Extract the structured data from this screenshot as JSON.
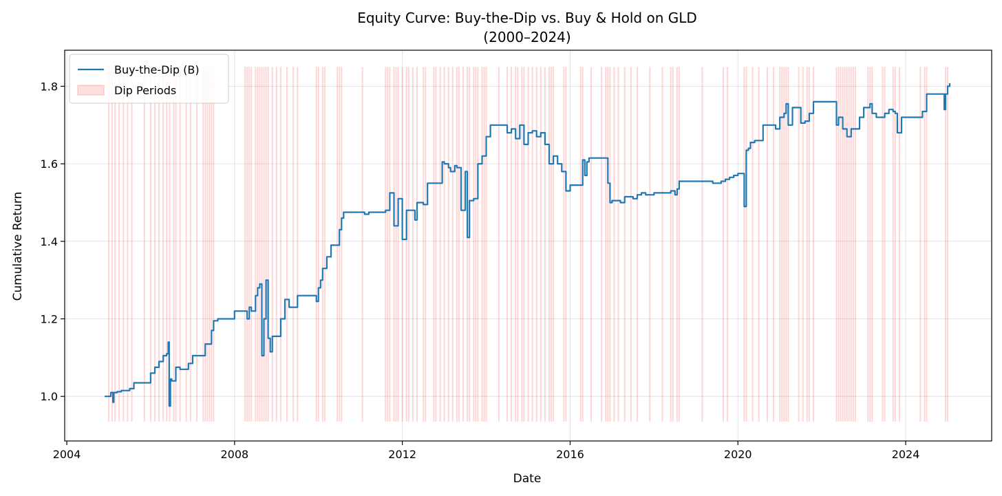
{
  "chart_data": {
    "type": "line",
    "title": "Equity Curve: Buy-the-Dip vs. Buy & Hold on GLD",
    "subtitle": "(2000–2024)",
    "xlabel": "Date",
    "ylabel": "Cumulative Return",
    "xlim": [
      2003.95,
      2026.05
    ],
    "ylim": [
      0.885,
      1.893
    ],
    "x_ticks": [
      2004,
      2008,
      2012,
      2016,
      2020,
      2024
    ],
    "x_tick_labels": [
      "2004",
      "2008",
      "2012",
      "2016",
      "2020",
      "2024"
    ],
    "y_ticks": [
      1.0,
      1.2,
      1.4,
      1.6,
      1.8
    ],
    "y_tick_labels": [
      "1.0",
      "1.2",
      "1.4",
      "1.6",
      "1.8"
    ],
    "grid": true,
    "legend_position": "upper-left",
    "colors": {
      "line": "#1f77b4",
      "dip": "#ff0000"
    },
    "series": [
      {
        "name": "Buy-the-Dip (B)",
        "x": [
          2004.9,
          2005.0,
          2005.05,
          2005.1,
          2005.12,
          2005.2,
          2005.3,
          2005.5,
          2005.6,
          2006.0,
          2006.1,
          2006.2,
          2006.3,
          2006.38,
          2006.42,
          2006.44,
          2006.47,
          2006.5,
          2006.6,
          2006.7,
          2006.9,
          2007.0,
          2007.3,
          2007.45,
          2007.5,
          2007.6,
          2008.0,
          2008.25,
          2008.3,
          2008.35,
          2008.4,
          2008.5,
          2008.55,
          2008.6,
          2008.65,
          2008.7,
          2008.75,
          2008.8,
          2008.85,
          2008.9,
          2009.0,
          2009.1,
          2009.2,
          2009.3,
          2009.5,
          2009.8,
          2009.95,
          2010.0,
          2010.05,
          2010.1,
          2010.2,
          2010.3,
          2010.5,
          2010.55,
          2010.6,
          2011.0,
          2011.1,
          2011.2,
          2011.5,
          2011.6,
          2011.7,
          2011.8,
          2011.9,
          2012.0,
          2012.1,
          2012.3,
          2012.35,
          2012.4,
          2012.5,
          2012.6,
          2012.9,
          2012.95,
          2013.0,
          2013.1,
          2013.15,
          2013.25,
          2013.3,
          2013.4,
          2013.5,
          2013.55,
          2013.6,
          2013.7,
          2013.8,
          2013.9,
          2014.0,
          2014.1,
          2014.3,
          2014.5,
          2014.6,
          2014.7,
          2014.8,
          2014.9,
          2015.0,
          2015.1,
          2015.2,
          2015.3,
          2015.4,
          2015.5,
          2015.6,
          2015.7,
          2015.8,
          2015.9,
          2016.0,
          2016.2,
          2016.3,
          2016.35,
          2016.4,
          2016.45,
          2016.8,
          2016.9,
          2016.95,
          2017.0,
          2017.2,
          2017.3,
          2017.5,
          2017.6,
          2017.7,
          2017.8,
          2018.0,
          2018.3,
          2018.4,
          2018.5,
          2018.55,
          2018.6,
          2018.7,
          2018.8,
          2019.0,
          2019.2,
          2019.4,
          2019.6,
          2019.7,
          2019.8,
          2019.9,
          2020.0,
          2020.1,
          2020.15,
          2020.2,
          2020.25,
          2020.3,
          2020.4,
          2020.6,
          2020.8,
          2020.9,
          2021.0,
          2021.1,
          2021.15,
          2021.2,
          2021.3,
          2021.4,
          2021.5,
          2021.6,
          2021.7,
          2021.8,
          2022.0,
          2022.2,
          2022.3,
          2022.35,
          2022.4,
          2022.5,
          2022.6,
          2022.7,
          2022.8,
          2022.9,
          2023.0,
          2023.1,
          2023.15,
          2023.2,
          2023.3,
          2023.5,
          2023.6,
          2023.7,
          2023.75,
          2023.8,
          2023.9,
          2024.0,
          2024.2,
          2024.4,
          2024.5,
          2024.9,
          2024.92,
          2024.95,
          2025.0,
          2025.05
        ],
        "y": [
          1.0,
          1.0,
          1.01,
          0.985,
          1.01,
          1.012,
          1.015,
          1.02,
          1.035,
          1.06,
          1.075,
          1.09,
          1.105,
          1.11,
          1.14,
          0.975,
          1.045,
          1.04,
          1.075,
          1.07,
          1.085,
          1.105,
          1.135,
          1.17,
          1.195,
          1.2,
          1.22,
          1.22,
          1.2,
          1.23,
          1.22,
          1.26,
          1.28,
          1.29,
          1.105,
          1.2,
          1.3,
          1.15,
          1.115,
          1.155,
          1.155,
          1.2,
          1.25,
          1.23,
          1.26,
          1.26,
          1.245,
          1.28,
          1.3,
          1.33,
          1.36,
          1.39,
          1.43,
          1.46,
          1.475,
          1.475,
          1.47,
          1.475,
          1.475,
          1.48,
          1.525,
          1.44,
          1.51,
          1.405,
          1.48,
          1.455,
          1.5,
          1.5,
          1.495,
          1.55,
          1.55,
          1.605,
          1.6,
          1.59,
          1.58,
          1.595,
          1.59,
          1.48,
          1.58,
          1.41,
          1.505,
          1.51,
          1.6,
          1.62,
          1.67,
          1.7,
          1.7,
          1.68,
          1.69,
          1.665,
          1.7,
          1.65,
          1.68,
          1.685,
          1.67,
          1.68,
          1.65,
          1.6,
          1.62,
          1.6,
          1.58,
          1.53,
          1.545,
          1.545,
          1.61,
          1.57,
          1.605,
          1.615,
          1.615,
          1.55,
          1.5,
          1.505,
          1.5,
          1.515,
          1.51,
          1.52,
          1.525,
          1.52,
          1.525,
          1.525,
          1.53,
          1.52,
          1.535,
          1.555,
          1.555,
          1.555,
          1.555,
          1.555,
          1.55,
          1.555,
          1.56,
          1.565,
          1.57,
          1.575,
          1.575,
          1.49,
          1.635,
          1.64,
          1.655,
          1.66,
          1.7,
          1.7,
          1.69,
          1.72,
          1.73,
          1.755,
          1.7,
          1.745,
          1.745,
          1.705,
          1.71,
          1.73,
          1.76,
          1.76,
          1.76,
          1.76,
          1.7,
          1.72,
          1.69,
          1.67,
          1.69,
          1.69,
          1.72,
          1.745,
          1.745,
          1.755,
          1.73,
          1.72,
          1.73,
          1.74,
          1.735,
          1.73,
          1.68,
          1.72,
          1.72,
          1.72,
          1.735,
          1.78,
          1.78,
          1.74,
          1.78,
          1.8,
          1.808
        ]
      }
    ],
    "dip_periods": {
      "name": "Dip Periods",
      "y_range": [
        0.935,
        1.85
      ],
      "x": [
        2005.0,
        2005.08,
        2005.15,
        2005.25,
        2005.35,
        2005.45,
        2005.55,
        2005.85,
        2006.0,
        2006.1,
        2006.2,
        2006.3,
        2006.38,
        2006.45,
        2006.55,
        2006.6,
        2006.7,
        2006.85,
        2006.95,
        2007.1,
        2007.25,
        2007.3,
        2007.35,
        2007.4,
        2007.45,
        2007.5,
        2008.25,
        2008.3,
        2008.35,
        2008.4,
        2008.5,
        2008.55,
        2008.6,
        2008.65,
        2008.7,
        2008.75,
        2008.8,
        2008.9,
        2009.0,
        2009.1,
        2009.25,
        2009.4,
        2009.5,
        2009.95,
        2010.0,
        2010.1,
        2010.15,
        2010.45,
        2010.5,
        2010.55,
        2011.05,
        2011.6,
        2011.65,
        2011.7,
        2011.8,
        2011.85,
        2011.9,
        2012.0,
        2012.1,
        2012.15,
        2012.25,
        2012.35,
        2012.5,
        2012.55,
        2012.75,
        2012.8,
        2012.9,
        2013.0,
        2013.1,
        2013.2,
        2013.3,
        2013.35,
        2013.45,
        2013.55,
        2013.6,
        2013.7,
        2013.75,
        2013.8,
        2013.9,
        2013.95,
        2014.0,
        2014.3,
        2014.5,
        2014.6,
        2014.7,
        2014.75,
        2014.85,
        2014.9,
        2015.0,
        2015.1,
        2015.2,
        2015.3,
        2015.4,
        2015.5,
        2015.55,
        2015.6,
        2015.85,
        2015.9,
        2016.25,
        2016.3,
        2016.5,
        2016.75,
        2016.85,
        2016.9,
        2016.95,
        2017.05,
        2017.15,
        2017.3,
        2017.45,
        2017.6,
        2017.9,
        2018.2,
        2018.4,
        2018.45,
        2018.55,
        2018.6,
        2019.15,
        2019.65,
        2019.75,
        2020.15,
        2020.2,
        2020.35,
        2020.5,
        2020.7,
        2020.85,
        2021.0,
        2021.05,
        2021.1,
        2021.15,
        2021.2,
        2021.45,
        2021.55,
        2021.65,
        2021.7,
        2021.8,
        2022.35,
        2022.4,
        2022.45,
        2022.5,
        2022.55,
        2022.6,
        2022.65,
        2022.7,
        2022.75,
        2022.8,
        2023.1,
        2023.15,
        2023.2,
        2023.45,
        2023.5,
        2023.7,
        2023.75,
        2023.85,
        2024.35,
        2024.45,
        2024.5,
        2024.95,
        2025.0
      ]
    }
  }
}
